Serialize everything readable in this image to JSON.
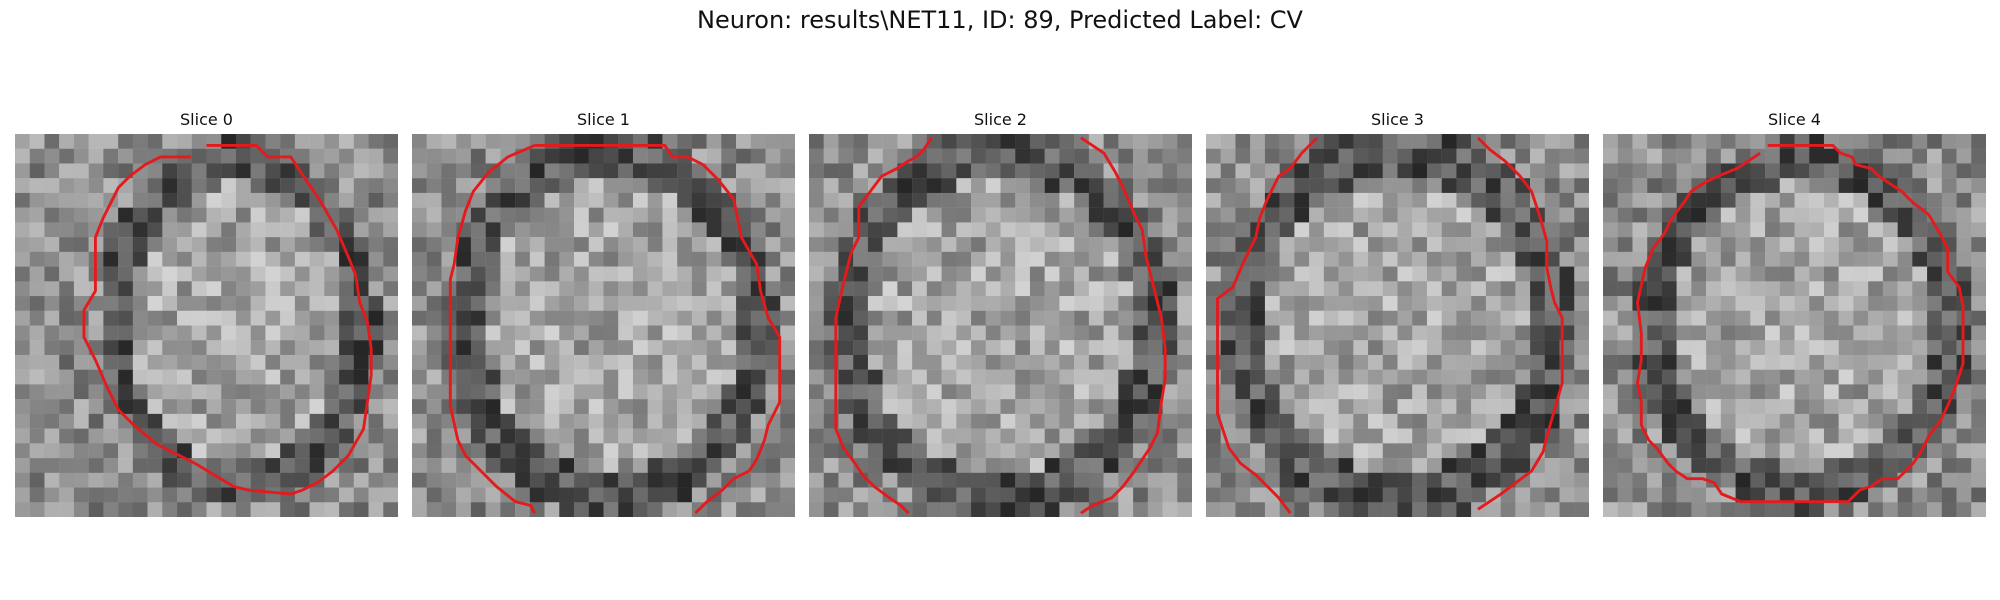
{
  "figure": {
    "title": "Neuron: results\\NET11, ID: 89, Predicted Label: CV"
  },
  "colors": {
    "contour": "#e41a1c",
    "background": "#ffffff"
  },
  "slices": [
    {
      "title": "Slice 0"
    },
    {
      "title": "Slice 1"
    },
    {
      "title": "Slice 2"
    },
    {
      "title": "Slice 3"
    },
    {
      "title": "Slice 4"
    }
  ]
}
